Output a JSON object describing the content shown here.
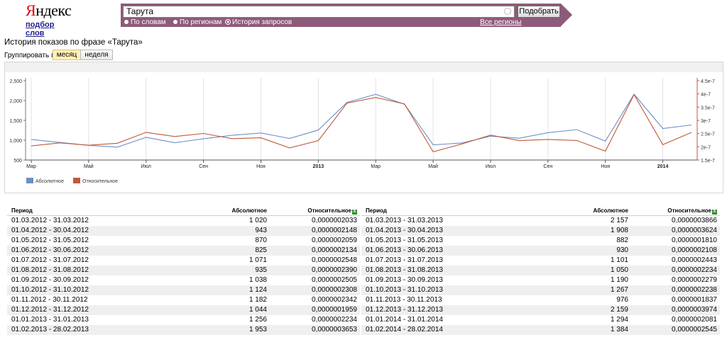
{
  "header": {
    "logo_first": "Я",
    "logo_rest": "ндекс",
    "subtitle": "подбор слов",
    "search_value": "Тарута",
    "search_button": "Подобрать",
    "modes": [
      {
        "label": "По словам",
        "selected": false
      },
      {
        "label": "По регионам",
        "selected": false
      },
      {
        "label": "История запросов",
        "selected": true
      }
    ],
    "all_regions": "Все регионы"
  },
  "page_title": "История показов по фразе «Тарута»",
  "group": {
    "label": "Группировать по:",
    "options": [
      "месяц",
      "неделя"
    ],
    "selected": "месяц"
  },
  "colors": {
    "absolute": "#6f8fc4",
    "relative": "#c0583a",
    "header_bar": "#8e5a7a"
  },
  "chart_data": {
    "type": "line",
    "x_tick_labels": [
      "Мар",
      "Май",
      "Июл",
      "Сен",
      "Ноя",
      "2013",
      "Мар",
      "Май",
      "Июл",
      "Сен",
      "Ноя",
      "2014"
    ],
    "x_tick_positions": [
      0,
      2,
      4,
      6,
      8,
      10,
      12,
      14,
      16,
      18,
      20,
      22
    ],
    "bold_ticks": [
      "2013",
      "2014"
    ],
    "y_left": {
      "ticks": [
        "500",
        "1,000",
        "1,500",
        "2,000",
        "2,500"
      ],
      "range": [
        500,
        2500
      ]
    },
    "y_right": {
      "ticks": [
        "1.5e-7",
        "2e-7",
        "2.5e-7",
        "3e-7",
        "3.5e-7",
        "4e-7",
        "4.5e-7"
      ],
      "range": [
        1.5e-07,
        4.5e-07
      ]
    },
    "legend_position": "bottom-left",
    "series": [
      {
        "name": "Абсолютное",
        "axis": "left",
        "values": [
          1020,
          943,
          870,
          825,
          1071,
          935,
          1038,
          1124,
          1182,
          1044,
          1256,
          1953,
          2157,
          1908,
          882,
          930,
          1101,
          1050,
          1190,
          1267,
          976,
          2159,
          1294,
          1384
        ]
      },
      {
        "name": "Относительное",
        "axis": "right",
        "values": [
          2.033e-07,
          2.148e-07,
          2.059e-07,
          2.134e-07,
          2.548e-07,
          2.39e-07,
          2.505e-07,
          2.308e-07,
          2.342e-07,
          1.959e-07,
          2.234e-07,
          3.653e-07,
          3.866e-07,
          3.624e-07,
          1.81e-07,
          2.108e-07,
          2.443e-07,
          2.234e-07,
          2.279e-07,
          2.238e-07,
          1.837e-07,
          3.974e-07,
          2.081e-07,
          2.545e-07
        ]
      }
    ]
  },
  "table": {
    "headers": {
      "period": "Период",
      "absolute": "Абсолютное",
      "relative": "Относительное",
      "xl": "X"
    },
    "left": [
      {
        "period": "01.03.2012 - 31.03.2012",
        "absolute": "1 020",
        "relative": "0,0000002033"
      },
      {
        "period": "01.04.2012 - 30.04.2012",
        "absolute": "943",
        "relative": "0,0000002148"
      },
      {
        "period": "01.05.2012 - 31.05.2012",
        "absolute": "870",
        "relative": "0,0000002059"
      },
      {
        "period": "01.06.2012 - 30.06.2012",
        "absolute": "825",
        "relative": "0,0000002134"
      },
      {
        "period": "01.07.2012 - 31.07.2012",
        "absolute": "1 071",
        "relative": "0,0000002548"
      },
      {
        "period": "01.08.2012 - 31.08.2012",
        "absolute": "935",
        "relative": "0,0000002390"
      },
      {
        "period": "01.09.2012 - 30.09.2012",
        "absolute": "1 038",
        "relative": "0,0000002505"
      },
      {
        "period": "01.10.2012 - 31.10.2012",
        "absolute": "1 124",
        "relative": "0,0000002308"
      },
      {
        "period": "01.11.2012 - 30.11.2012",
        "absolute": "1 182",
        "relative": "0,0000002342"
      },
      {
        "period": "01.12.2012 - 31.12.2012",
        "absolute": "1 044",
        "relative": "0,0000001959"
      },
      {
        "period": "01.01.2013 - 31.01.2013",
        "absolute": "1 256",
        "relative": "0,0000002234"
      },
      {
        "period": "01.02.2013 - 28.02.2013",
        "absolute": "1 953",
        "relative": "0,0000003653"
      }
    ],
    "right": [
      {
        "period": "01.03.2013 - 31.03.2013",
        "absolute": "2 157",
        "relative": "0,0000003866"
      },
      {
        "period": "01.04.2013 - 30.04.2013",
        "absolute": "1 908",
        "relative": "0,0000003624"
      },
      {
        "period": "01.05.2013 - 31.05.2013",
        "absolute": "882",
        "relative": "0,0000001810"
      },
      {
        "period": "01.06.2013 - 30.06.2013",
        "absolute": "930",
        "relative": "0,0000002108"
      },
      {
        "period": "01.07.2013 - 31.07.2013",
        "absolute": "1 101",
        "relative": "0,0000002443"
      },
      {
        "period": "01.08.2013 - 31.08.2013",
        "absolute": "1 050",
        "relative": "0,0000002234"
      },
      {
        "period": "01.09.2013 - 30.09.2013",
        "absolute": "1 190",
        "relative": "0,0000002279"
      },
      {
        "period": "01.10.2013 - 31.10.2013",
        "absolute": "1 267",
        "relative": "0,0000002238"
      },
      {
        "period": "01.11.2013 - 30.11.2013",
        "absolute": "976",
        "relative": "0,0000001837"
      },
      {
        "period": "01.12.2013 - 31.12.2013",
        "absolute": "2 159",
        "relative": "0,0000003974"
      },
      {
        "period": "01.01.2014 - 31.01.2014",
        "absolute": "1 294",
        "relative": "0,0000002081"
      },
      {
        "period": "01.02.2014 - 28.02.2014",
        "absolute": "1 384",
        "relative": "0,0000002545"
      }
    ]
  }
}
